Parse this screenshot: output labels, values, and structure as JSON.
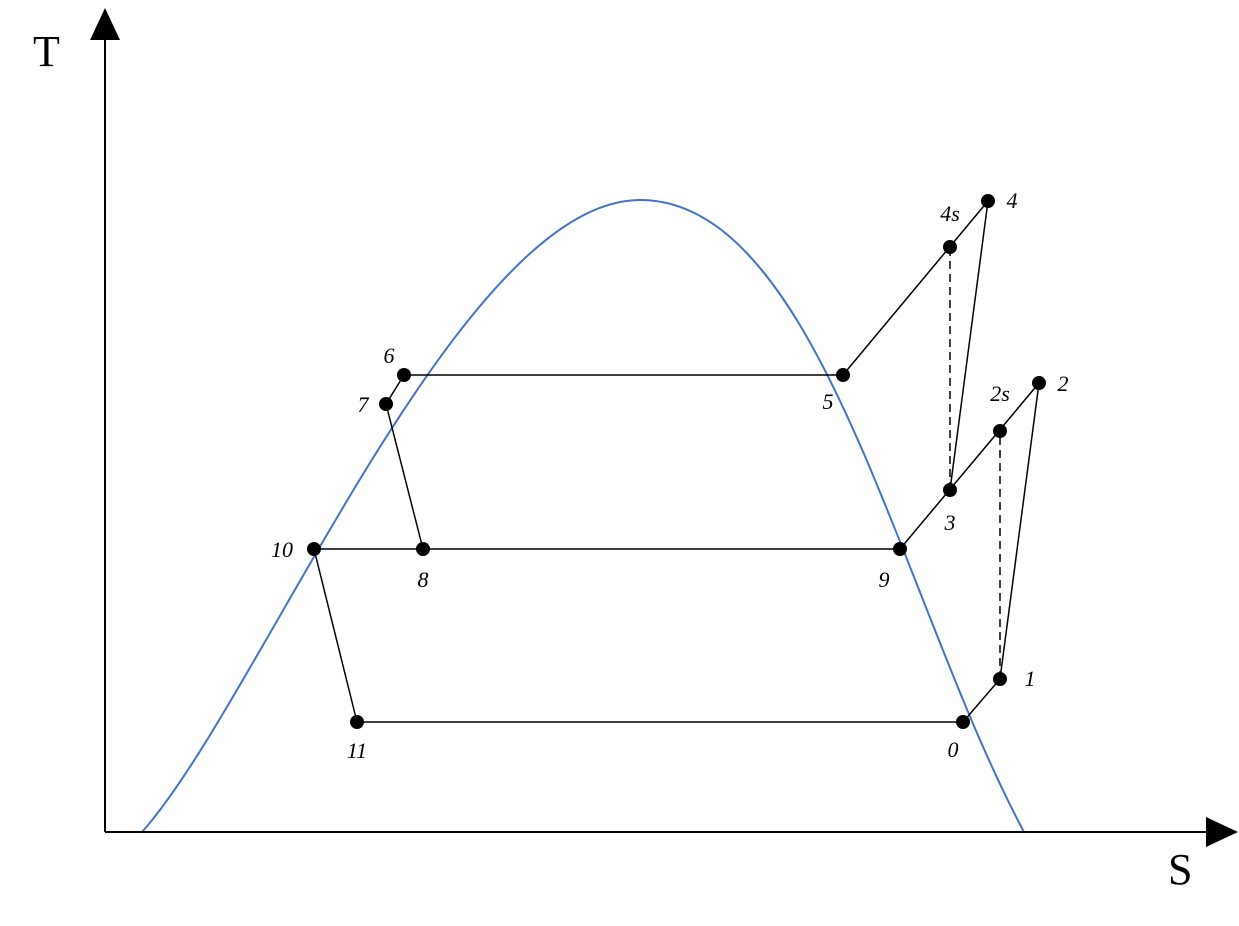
{
  "axes": {
    "x_label": "S",
    "y_label": "T"
  },
  "colors": {
    "dome": "#4472C4",
    "lines": "#000000"
  },
  "points": [
    {
      "id": "0",
      "label": "0"
    },
    {
      "id": "1",
      "label": "1"
    },
    {
      "id": "2s",
      "label": "2s"
    },
    {
      "id": "2",
      "label": "2"
    },
    {
      "id": "3",
      "label": "3"
    },
    {
      "id": "4s",
      "label": "4s"
    },
    {
      "id": "4",
      "label": "4"
    },
    {
      "id": "5",
      "label": "5"
    },
    {
      "id": "6",
      "label": "6"
    },
    {
      "id": "7",
      "label": "7"
    },
    {
      "id": "8",
      "label": "8"
    },
    {
      "id": "9",
      "label": "9"
    },
    {
      "id": "10",
      "label": "10"
    },
    {
      "id": "11",
      "label": "11"
    }
  ],
  "segments": [
    {
      "from": "11",
      "to": "0",
      "style": "solid"
    },
    {
      "from": "0",
      "to": "1",
      "style": "solid"
    },
    {
      "from": "1",
      "to": "2",
      "style": "solid"
    },
    {
      "from": "1",
      "to": "2s",
      "style": "dashed"
    },
    {
      "from": "9",
      "to": "2",
      "style": "solid"
    },
    {
      "from": "3",
      "to": "4",
      "style": "solid"
    },
    {
      "from": "3",
      "to": "4s",
      "style": "dashed"
    },
    {
      "from": "5",
      "to": "4",
      "style": "solid"
    },
    {
      "from": "6",
      "to": "5",
      "style": "solid"
    },
    {
      "from": "6",
      "to": "7",
      "style": "solid"
    },
    {
      "from": "7",
      "to": "8",
      "style": "solid"
    },
    {
      "from": "10",
      "to": "9",
      "style": "solid"
    },
    {
      "from": "10",
      "to": "11",
      "style": "solid"
    }
  ]
}
